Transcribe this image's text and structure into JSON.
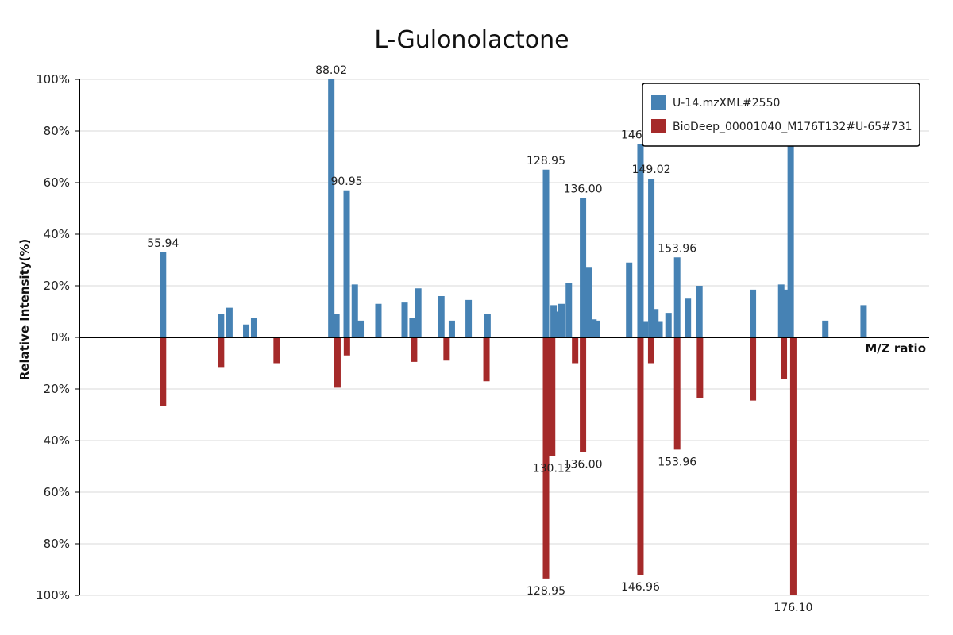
{
  "chart_data": {
    "type": "bar",
    "title": "L-Gulonolactone",
    "xlabel": "M/Z ratio",
    "ylabel": "Relative Intensity(%)",
    "ylim": [
      -100,
      100
    ],
    "xlim": [
      40,
      202
    ],
    "yticks": [
      {
        "value": 100,
        "label": "100%"
      },
      {
        "value": 80,
        "label": "80%"
      },
      {
        "value": 60,
        "label": "60%"
      },
      {
        "value": 40,
        "label": "40%"
      },
      {
        "value": 20,
        "label": "20%"
      },
      {
        "value": 0,
        "label": "0%"
      },
      {
        "value": -20,
        "label": "20%"
      },
      {
        "value": -40,
        "label": "40%"
      },
      {
        "value": -60,
        "label": "60%"
      },
      {
        "value": -80,
        "label": "80%"
      },
      {
        "value": -100,
        "label": "100%"
      }
    ],
    "grid": true,
    "legend_position": "top-right",
    "series": [
      {
        "name": "U-14.mzXML#2550",
        "color": "#4682b4",
        "direction": "up",
        "peaks": [
          {
            "mz": 55.94,
            "value": 33,
            "label": "55.94"
          },
          {
            "mz": 67.0,
            "value": 9
          },
          {
            "mz": 68.6,
            "value": 11.5
          },
          {
            "mz": 71.8,
            "value": 5
          },
          {
            "mz": 73.3,
            "value": 7.5
          },
          {
            "mz": 88.02,
            "value": 100,
            "label": "88.02"
          },
          {
            "mz": 89.0,
            "value": 9
          },
          {
            "mz": 90.95,
            "value": 57,
            "label": "90.95"
          },
          {
            "mz": 92.5,
            "value": 20.5
          },
          {
            "mz": 93.6,
            "value": 6.5
          },
          {
            "mz": 97.0,
            "value": 13
          },
          {
            "mz": 102.0,
            "value": 13.5
          },
          {
            "mz": 103.5,
            "value": 7.5
          },
          {
            "mz": 104.6,
            "value": 19
          },
          {
            "mz": 109.0,
            "value": 16
          },
          {
            "mz": 111.0,
            "value": 6.5
          },
          {
            "mz": 114.2,
            "value": 14.5
          },
          {
            "mz": 117.8,
            "value": 9
          },
          {
            "mz": 128.95,
            "value": 65,
            "label": "128.95"
          },
          {
            "mz": 130.4,
            "value": 12.5
          },
          {
            "mz": 131.0,
            "value": 10
          },
          {
            "mz": 131.9,
            "value": 13
          },
          {
            "mz": 133.3,
            "value": 21
          },
          {
            "mz": 136.0,
            "value": 54,
            "label": "136.00"
          },
          {
            "mz": 137.2,
            "value": 27
          },
          {
            "mz": 138.0,
            "value": 7
          },
          {
            "mz": 138.6,
            "value": 6.5
          },
          {
            "mz": 144.8,
            "value": 29
          },
          {
            "mz": 146.96,
            "value": 75,
            "label": "146.96"
          },
          {
            "mz": 147.8,
            "value": 6
          },
          {
            "mz": 149.02,
            "value": 61.5,
            "label": "149.02"
          },
          {
            "mz": 149.8,
            "value": 11
          },
          {
            "mz": 150.6,
            "value": 6
          },
          {
            "mz": 152.3,
            "value": 9.5
          },
          {
            "mz": 153.96,
            "value": 31,
            "label": "153.96"
          },
          {
            "mz": 156.0,
            "value": 15
          },
          {
            "mz": 158.2,
            "value": 20
          },
          {
            "mz": 168.4,
            "value": 18.5
          },
          {
            "mz": 173.8,
            "value": 20.5
          },
          {
            "mz": 174.8,
            "value": 18.5
          },
          {
            "mz": 175.6,
            "value": 81
          },
          {
            "mz": 182.2,
            "value": 6.5
          },
          {
            "mz": 189.5,
            "value": 12.5
          }
        ]
      },
      {
        "name": "BioDeep_00001040_M176T132#U-65#731",
        "color": "#a52a2a",
        "direction": "down",
        "peaks": [
          {
            "mz": 55.94,
            "value": 26.5
          },
          {
            "mz": 67.0,
            "value": 11.5
          },
          {
            "mz": 77.6,
            "value": 10
          },
          {
            "mz": 89.2,
            "value": 19.5
          },
          {
            "mz": 91.0,
            "value": 7
          },
          {
            "mz": 103.8,
            "value": 9.5
          },
          {
            "mz": 110.0,
            "value": 9
          },
          {
            "mz": 117.6,
            "value": 17
          },
          {
            "mz": 128.95,
            "value": 93.5,
            "label": "128.95"
          },
          {
            "mz": 130.12,
            "value": 46,
            "label": "130.12"
          },
          {
            "mz": 134.5,
            "value": 10
          },
          {
            "mz": 136.0,
            "value": 44.5,
            "label": "136.00"
          },
          {
            "mz": 146.96,
            "value": 92,
            "label": "146.96"
          },
          {
            "mz": 149.0,
            "value": 10
          },
          {
            "mz": 153.96,
            "value": 43.5,
            "label": "153.96"
          },
          {
            "mz": 158.3,
            "value": 23.5
          },
          {
            "mz": 168.4,
            "value": 24.5
          },
          {
            "mz": 176.1,
            "value": 100,
            "label": "176.10"
          },
          {
            "mz": 174.3,
            "value": 16
          }
        ]
      }
    ]
  }
}
